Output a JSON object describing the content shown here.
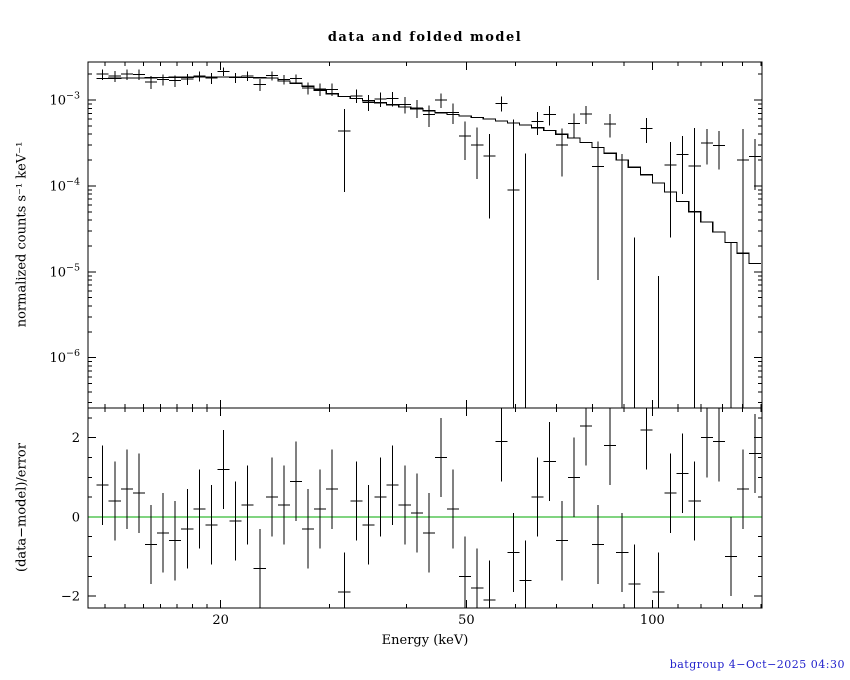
{
  "footer": {
    "text": "batgroup  4−Oct−2025 04:30",
    "color": "#2222cc"
  },
  "chart_data": {
    "type": "scatter",
    "title": "data and folded model",
    "xlabel": "Energy (keV)",
    "xscale": "log",
    "xlim": [
      12.2,
      150.5
    ],
    "xticks": [
      {
        "value": 20,
        "label": "20"
      },
      {
        "value": 50,
        "label": "50"
      },
      {
        "value": 100,
        "label": "100"
      }
    ],
    "series": [
      {
        "name": "data",
        "style": "crosses-with-error-bars",
        "color": "#000000"
      },
      {
        "name": "folded model",
        "style": "step-histogram",
        "color": "#000000"
      },
      {
        "name": "zero line",
        "panel": 2,
        "color": "#00aa00"
      }
    ],
    "panels": [
      {
        "name": "spectrum",
        "ylabel": "normalized counts s⁻¹ keV⁻¹",
        "yscale": "log",
        "ylim": [
          2.6e-07,
          0.00277
        ],
        "yticks": [
          {
            "value": 0.001,
            "base": "10",
            "exp": "−3"
          },
          {
            "value": 0.0001,
            "base": "10",
            "exp": "−4"
          },
          {
            "value": 1e-05,
            "base": "10",
            "exp": "−5"
          },
          {
            "value": 1e-06,
            "base": "10",
            "exp": "−6"
          }
        ]
      },
      {
        "name": "residuals",
        "ylabel": "(data−model)/error",
        "yscale": "linear",
        "ylim": [
          -2.3,
          2.75
        ],
        "yticks": [
          {
            "value": 2,
            "label": "2"
          },
          {
            "value": 0,
            "label": "0"
          },
          {
            "value": -2,
            "label": "−2"
          }
        ],
        "resid_err": 1,
        "zero_line_color": "#00aa00"
      }
    ],
    "bins": {
      "e_lo": [
        12.6,
        13.18,
        13.79,
        14.42,
        15.09,
        15.78,
        16.51,
        17.27,
        18.07,
        18.9,
        19.77,
        20.68,
        21.63,
        22.63,
        23.67,
        24.76,
        25.9,
        27.09,
        28.34,
        29.65,
        31.01,
        32.44,
        33.94,
        35.5,
        37.14,
        38.85,
        40.64,
        42.51,
        44.47,
        46.52,
        48.66,
        50.9,
        53.25,
        55.7,
        58.27,
        60.95,
        63.76,
        66.7,
        69.77,
        72.98,
        76.35,
        79.86,
        83.54,
        87.39,
        91.42,
        95.63,
        100.04,
        104.65,
        109.47,
        114.51,
        119.79,
        125.3,
        131.08,
        137.12,
        143.43
      ],
      "e_hi": [
        13.18,
        13.79,
        14.42,
        15.09,
        15.78,
        16.51,
        17.27,
        18.07,
        18.9,
        19.77,
        20.68,
        21.63,
        22.63,
        23.67,
        24.76,
        25.9,
        27.09,
        28.34,
        29.65,
        31.01,
        32.44,
        33.94,
        35.5,
        37.14,
        38.85,
        40.64,
        42.51,
        44.47,
        46.52,
        48.66,
        50.9,
        53.25,
        55.7,
        58.27,
        60.95,
        63.76,
        66.7,
        69.77,
        72.98,
        76.35,
        79.86,
        83.54,
        87.39,
        91.42,
        95.63,
        100.04,
        104.65,
        109.47,
        114.51,
        119.79,
        125.3,
        131.08,
        137.12,
        143.43,
        150.04
      ],
      "data": [
        0.002,
        0.0019,
        0.002,
        0.00198,
        0.00162,
        0.00173,
        0.00168,
        0.00176,
        0.0019,
        0.0018,
        0.00214,
        0.00182,
        0.0019,
        0.00151,
        0.00192,
        0.00174,
        0.00177,
        0.00138,
        0.00134,
        0.00133,
        0.000435,
        0.00112,
        0.00094,
        0.00103,
        0.00104,
        0.000887,
        0.000809,
        0.000674,
        0.000995,
        0.000718,
        0.00038,
        0.000301,
        0.000222,
        0.000912,
        9e-05,
        -0.00021,
        0.00056,
        0.000678,
        0.000298,
        0.00053,
        0.000688,
        0.000168,
        0.000528,
        -0.000115,
        -0.000175,
        0.000465,
        -0.000101,
        0.000175,
        0.000231,
        0.00017,
        0.000318,
        0.000295,
        -0.000118,
        0.000199,
        0.00022
      ],
      "err": [
        0.00028,
        0.00028,
        0.00028,
        0.00028,
        0.00028,
        0.00026,
        0.00026,
        0.00026,
        0.00026,
        0.00026,
        0.00024,
        0.00024,
        0.00024,
        0.00024,
        0.00024,
        0.00022,
        0.00022,
        0.00022,
        0.00022,
        0.00022,
        0.00035,
        0.0002,
        0.0002,
        0.0002,
        0.0002,
        0.00019,
        0.00019,
        0.00019,
        0.00019,
        0.00019,
        0.00018,
        0.00018,
        0.00018,
        0.00018,
        0.0005,
        0.00045,
        0.00017,
        0.00017,
        0.00017,
        0.00017,
        0.00016,
        0.00016,
        0.00016,
        0.00035,
        0.0002,
        0.00015,
        0.00011,
        0.00015,
        0.00015,
        0.0003,
        0.00014,
        0.00014,
        0.00014,
        0.00026,
        0.00013
      ],
      "model": [
        0.00178,
        0.00179,
        0.0018,
        0.00181,
        0.00182,
        0.00183,
        0.00184,
        0.00184,
        0.00185,
        0.00185,
        0.00185,
        0.00184,
        0.00183,
        0.00182,
        0.0018,
        0.00167,
        0.00157,
        0.00145,
        0.0013,
        0.00118,
        0.0011,
        0.00104,
        0.00098,
        0.00093,
        0.00088,
        0.00083,
        0.00079,
        0.00075,
        0.00071,
        0.00068,
        0.00065,
        0.000625,
        0.0006,
        0.00057,
        0.00054,
        0.00051,
        0.000475,
        0.00044,
        0.0004,
        0.00036,
        0.00032,
        0.00028,
        0.00024,
        0.0002,
        0.000165,
        0.000135,
        0.000108,
        8.5e-05,
        6.6e-05,
        5e-05,
        3.8e-05,
        2.9e-05,
        2.2e-05,
        1.65e-05,
        1.25e-05
      ],
      "resid": [
        0.8,
        0.4,
        0.7,
        0.6,
        -0.7,
        -0.4,
        -0.6,
        -0.3,
        0.2,
        -0.2,
        1.2,
        -0.1,
        0.3,
        -1.3,
        0.5,
        0.3,
        0.9,
        -0.3,
        0.2,
        0.7,
        -1.9,
        0.4,
        -0.2,
        0.5,
        0.8,
        0.3,
        0.1,
        -0.4,
        1.5,
        0.2,
        -1.5,
        -1.8,
        -2.1,
        1.9,
        -0.9,
        -1.6,
        0.5,
        1.4,
        -0.6,
        1.0,
        2.3,
        -0.7,
        1.8,
        -0.9,
        -1.7,
        2.2,
        -1.9,
        0.6,
        1.1,
        0.4,
        2.0,
        1.9,
        -1.0,
        0.7,
        1.6
      ]
    }
  }
}
